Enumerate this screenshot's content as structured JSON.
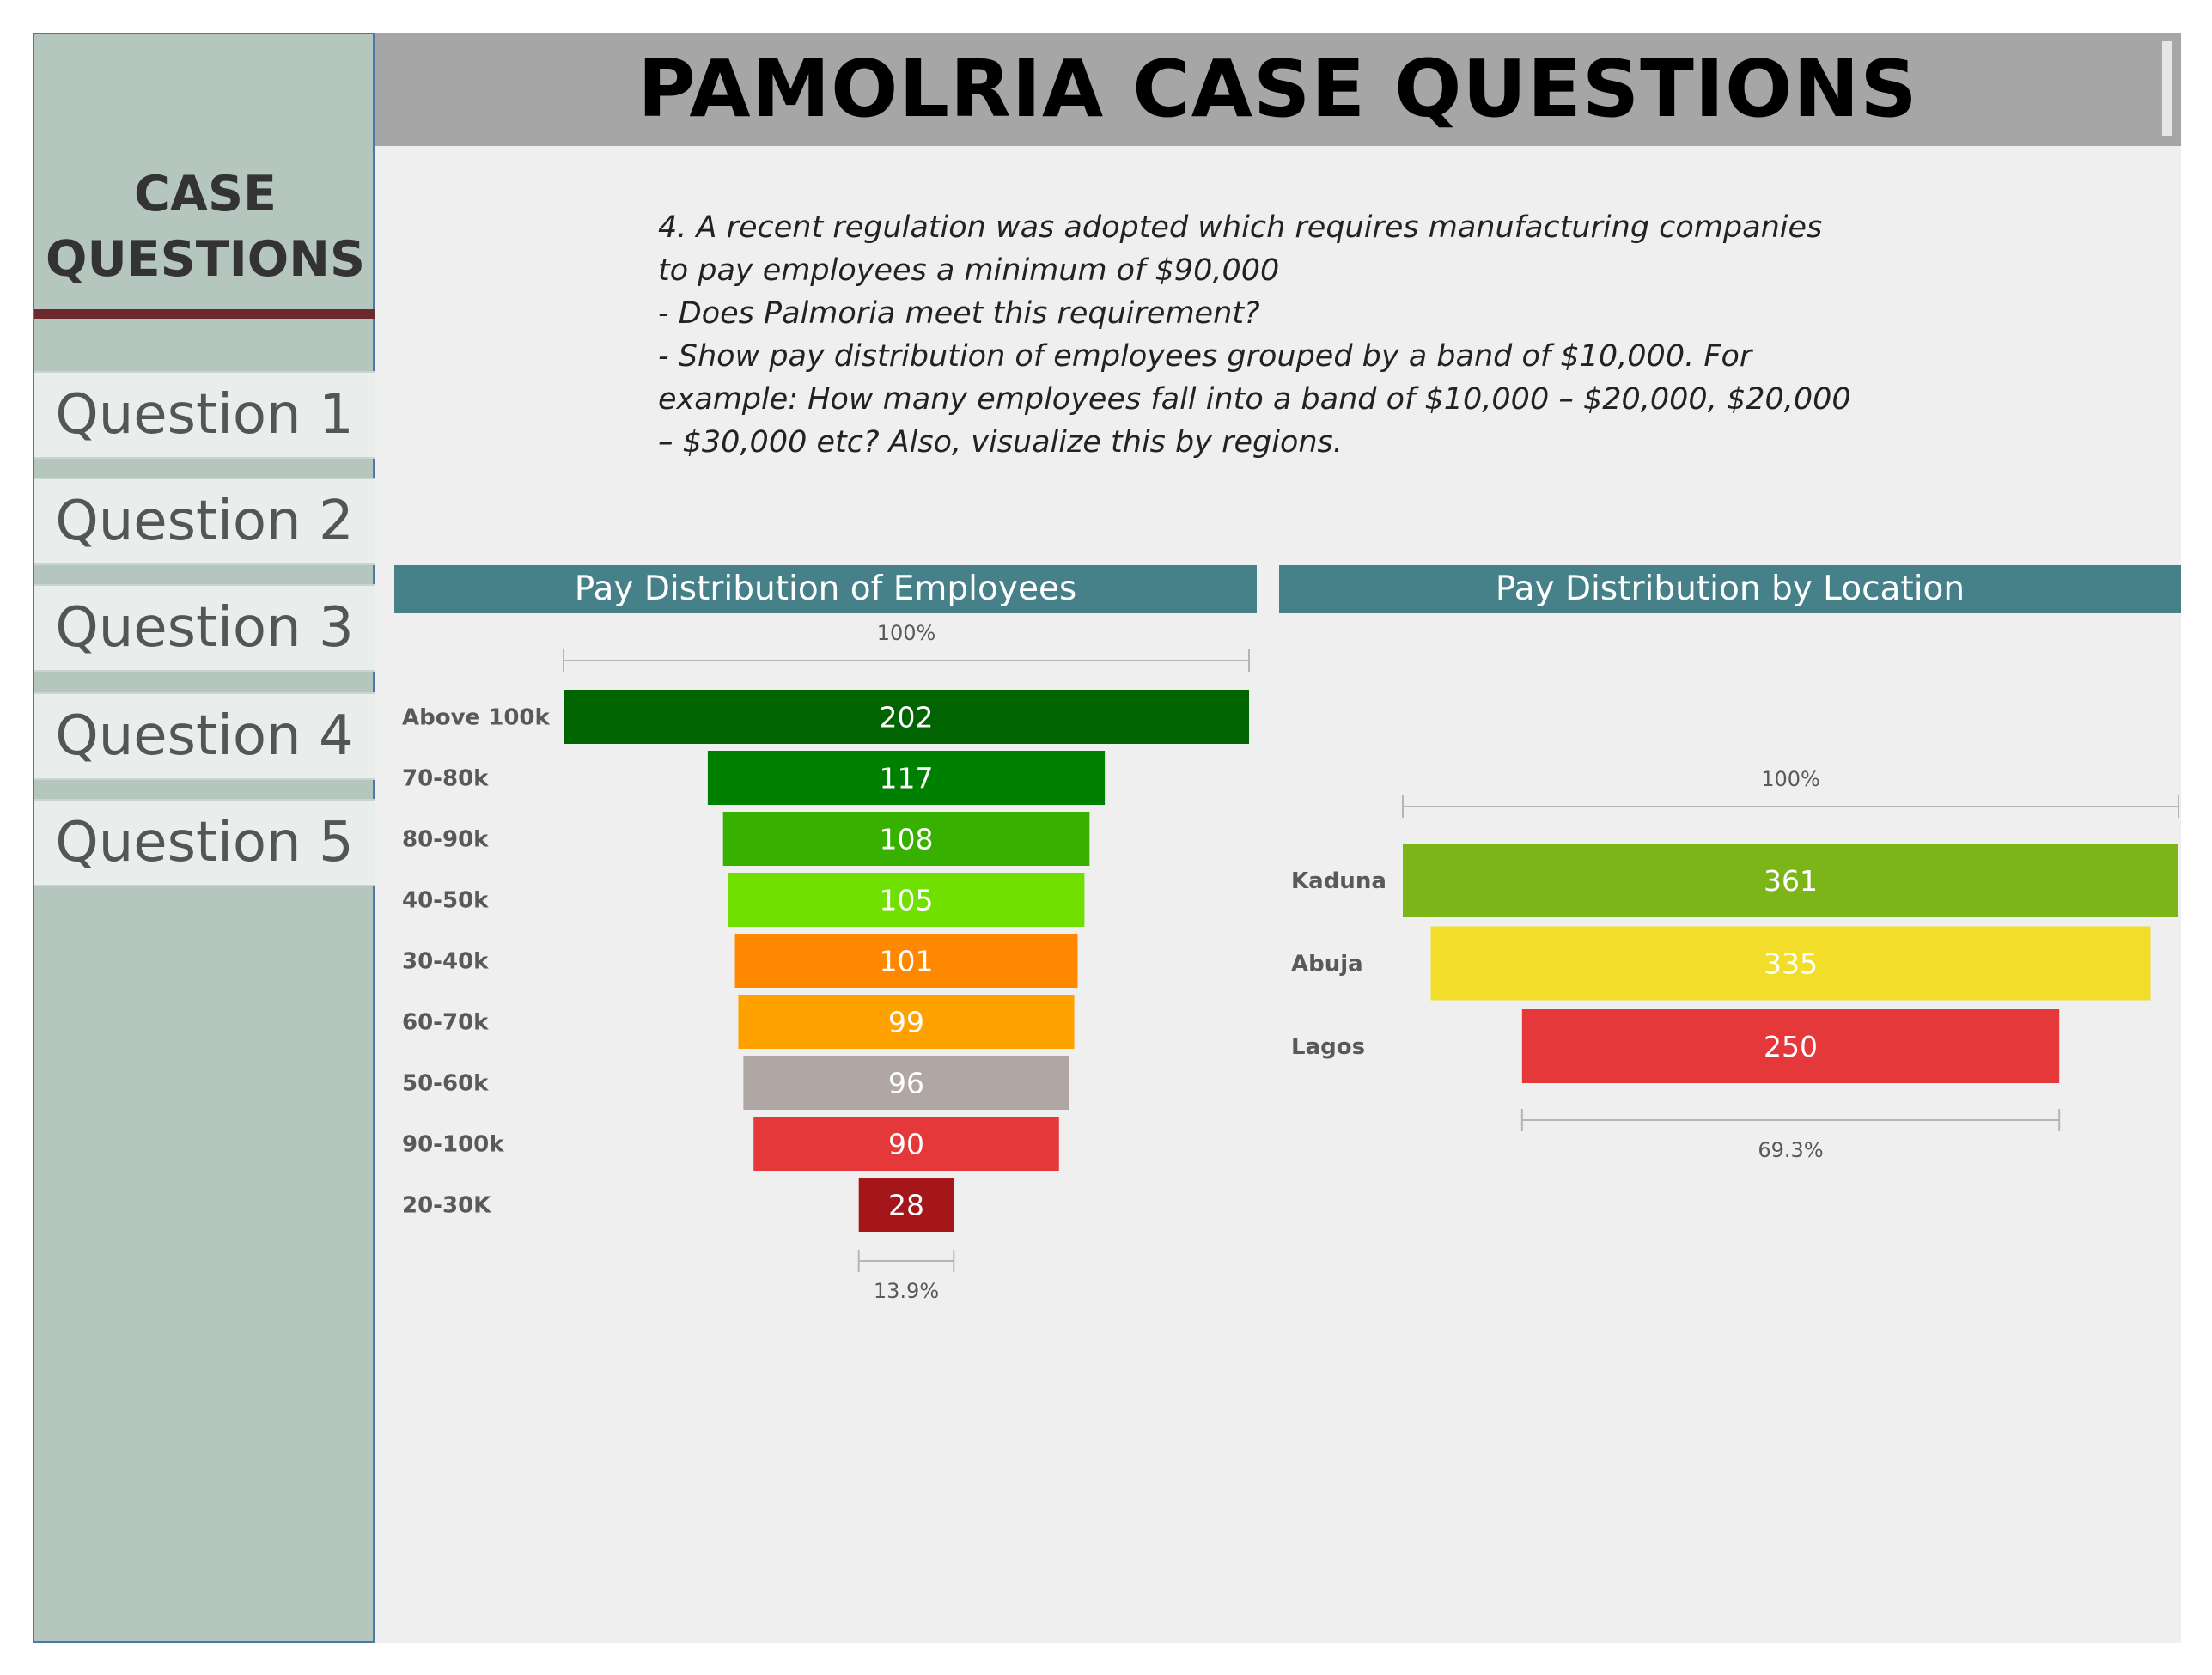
{
  "header": {
    "title": "PAMOLRIA CASE QUESTIONS"
  },
  "sidebar": {
    "title_line1": "CASE",
    "title_line2": "QUESTIONS",
    "items": [
      {
        "label": "Question 1"
      },
      {
        "label": "Question 2"
      },
      {
        "label": "Question 3"
      },
      {
        "label": "Question 4"
      },
      {
        "label": "Question 5"
      }
    ]
  },
  "question": {
    "lines": [
      "4. A recent regulation was adopted which requires  manufacturing companies",
      "to pay employees a minimum of $90,000",
      "- Does Palmoria meet this requirement?",
      "- Show pay distribution of employees grouped by a band of $10,000. For",
      "example: How many employees fall into a band of $10,000 – $20,000, $20,000",
      "– $30,000 etc? Also, visualize this by regions."
    ]
  },
  "chart_data": [
    {
      "type": "funnel",
      "title": "Pay Distribution of Employees",
      "categories": [
        "Above 100k",
        "70-80k",
        "80-90k",
        "40-50k",
        "30-40k",
        "60-70k",
        "50-60k",
        "90-100k",
        "20-30K"
      ],
      "values": [
        202,
        117,
        108,
        105,
        101,
        99,
        96,
        90,
        28
      ],
      "colors": [
        "#006400",
        "#008000",
        "#38b000",
        "#70e000",
        "#ff8800",
        "#ffa200",
        "#b0a6a4",
        "#e5383b",
        "#a4161a"
      ],
      "top_percent_label": "100%",
      "bottom_percent_label": "13.9%"
    },
    {
      "type": "funnel",
      "title": "Pay Distribution by Location",
      "categories": [
        "Kaduna",
        "Abuja",
        "Lagos"
      ],
      "values": [
        361,
        335,
        250
      ],
      "colors": [
        "#7cb518",
        "#f2de2a",
        "#e5383b"
      ],
      "top_percent_label": "100%",
      "bottom_percent_label": "69.3%"
    }
  ]
}
